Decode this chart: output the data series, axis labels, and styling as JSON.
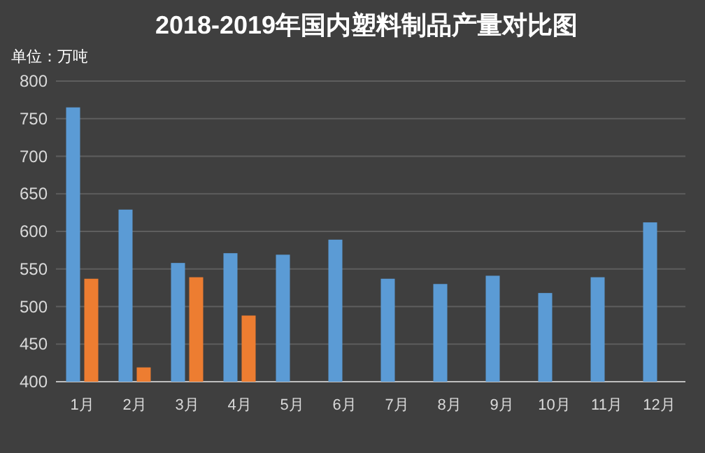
{
  "chart_data": {
    "type": "bar",
    "title": "2018-2019年国内塑料制品产量对比图",
    "ylabel": "单位：万吨",
    "categories": [
      "1月",
      "2月",
      "3月",
      "4月",
      "5月",
      "6月",
      "7月",
      "8月",
      "9月",
      "10月",
      "11月",
      "12月"
    ],
    "series": [
      {
        "color": "#5b9bd5",
        "values": [
          765,
          629,
          558,
          571,
          569,
          589,
          537,
          530,
          541,
          518,
          539,
          612
        ]
      },
      {
        "color": "#ed7d31",
        "values": [
          537,
          419,
          539,
          488,
          null,
          null,
          null,
          null,
          null,
          null,
          null,
          null
        ]
      }
    ],
    "ylim": [
      400,
      800
    ],
    "yticks": [
      400,
      450,
      500,
      550,
      600,
      650,
      700,
      750,
      800
    ],
    "grid": "y"
  }
}
